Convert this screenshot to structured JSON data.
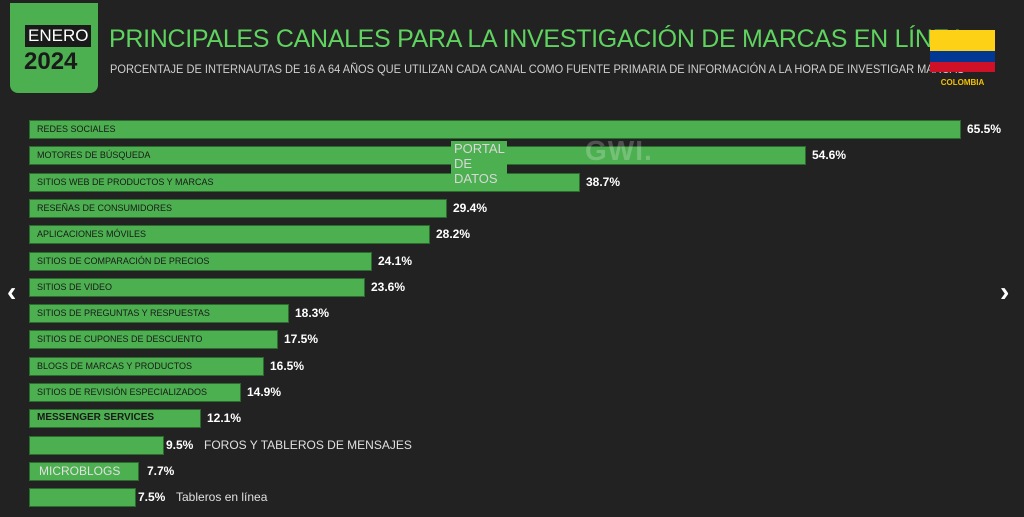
{
  "header": {
    "month": "ENERO",
    "year": "2024",
    "title": "PRINCIPALES CANALES PARA LA INVESTIGACIÓN DE MARCAS EN LÍNEA",
    "subtitle": "PORCENTAJE DE INTERNAUTAS DE 16 A 64 AÑOS QUE UTILIZAN CADA CANAL COMO FUENTE PRIMARIA DE INFORMACIÓN A LA HORA DE INVESTIGAR MARCAS",
    "country": "COLOMBIA"
  },
  "watermark": {
    "brand": "GWI.",
    "sub": "PORTAL DE DATOS"
  },
  "nav": {
    "prev": "‹",
    "next": "›"
  },
  "colors": {
    "bar": "#4caf50",
    "title": "#5fd35f",
    "background": "#222222",
    "flag_yellow": "#fcd116",
    "flag_blue": "#003893",
    "flag_red": "#ce1126"
  },
  "chart_data": {
    "type": "bar",
    "orientation": "horizontal",
    "title": "PRINCIPALES CANALES PARA LA INVESTIGACIÓN DE MARCAS EN LÍNEA",
    "xlim": [
      0,
      65.5
    ],
    "categories": [
      "REDES SOCIALES",
      "MOTORES DE BÚSQUEDA",
      "SITIOS WEB DE PRODUCTOS Y MARCAS",
      "RESEÑAS DE CONSUMIDORES",
      "APLICACIONES MÓVILES",
      "SITIOS DE COMPARACIÓN DE PRECIOS",
      "SITIOS DE VIDEO",
      "SITIOS DE PREGUNTAS Y RESPUESTAS",
      "SITIOS DE CUPONES DE DESCUENTO",
      "BLOGS DE MARCAS Y PRODUCTOS",
      "SITIOS DE REVISIÓN ESPECIALIZADOS",
      "MESSENGER SERVICES",
      "FOROS Y TABLEROS DE MENSAJES",
      "MICROBLOGS",
      "Tableros en línea"
    ],
    "values": [
      65.5,
      54.6,
      38.7,
      29.4,
      28.2,
      24.1,
      23.6,
      18.3,
      17.5,
      16.5,
      14.9,
      12.1,
      9.5,
      7.7,
      7.5
    ],
    "value_labels": [
      "65.5%",
      "54.6%",
      "38.7%",
      "29.4%",
      "28.2%",
      "24.1%",
      "23.6%",
      "18.3%",
      "17.5%",
      "16.5%",
      "14.9%",
      "12.1%",
      "9.5%",
      "7.7%",
      "7.5%"
    ]
  }
}
